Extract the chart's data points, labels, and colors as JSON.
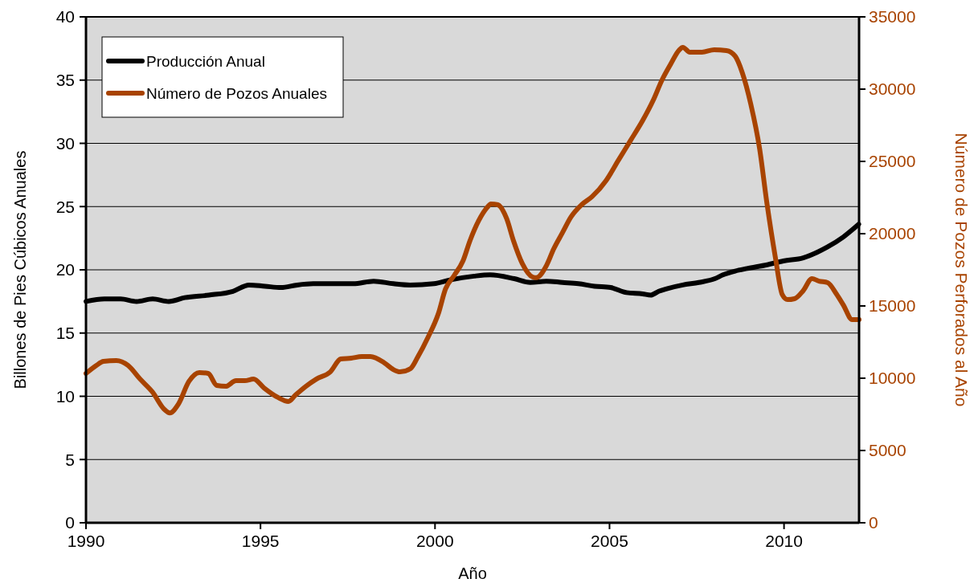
{
  "chart_data": {
    "type": "line",
    "xlabel": "Año",
    "ylabel": "Billones de Pies Cúbicos Anuales",
    "y2label": "Número de Pozos Perforados al Año",
    "xlim": [
      1990,
      2012.15
    ],
    "xticks": [
      1990,
      1995,
      2000,
      2005,
      2010
    ],
    "ylim": [
      0,
      40
    ],
    "yticks": [
      0,
      5,
      10,
      15,
      20,
      25,
      30,
      35,
      40
    ],
    "y2lim": [
      0,
      35000
    ],
    "y2ticks": [
      0,
      5000,
      10000,
      15000,
      20000,
      25000,
      30000,
      35000
    ],
    "grid": "y",
    "legend": "top left",
    "line_style": "solid",
    "marker": "none",
    "series": [
      {
        "name": "Producción Anual",
        "color": "#000000",
        "x": [
          1990,
          1990.53,
          1990.99,
          1991.45,
          1991.91,
          1992.37,
          1992.83,
          1993.52,
          1994.21,
          1994.67,
          1995.13,
          1995.59,
          1996.05,
          1996.51,
          1997.2,
          1997.66,
          1998.24,
          1998.81,
          1999.28,
          1999.97,
          2000.43,
          2001.12,
          2001.58,
          2002.27,
          2002.73,
          2003.19,
          2003.65,
          2004.11,
          2004.57,
          2005.03,
          2005.49,
          2005.95,
          2006.18,
          2006.41,
          2006.64,
          2007.1,
          2007.56,
          2008.02,
          2008.25,
          2008.6,
          2008.94,
          2009.52,
          2009.98,
          2010.55,
          2011.24,
          2011.7,
          2012.14
        ],
        "values": [
          17.5,
          17.7,
          17.7,
          17.5,
          17.7,
          17.5,
          17.8,
          18.0,
          18.3,
          18.8,
          18.7,
          18.6,
          18.8,
          18.9,
          18.9,
          18.9,
          19.1,
          18.9,
          18.8,
          18.9,
          19.2,
          19.5,
          19.6,
          19.3,
          19.0,
          19.1,
          19.0,
          18.9,
          18.7,
          18.6,
          18.2,
          18.1,
          18.0,
          18.3,
          18.5,
          18.8,
          19.0,
          19.3,
          19.6,
          19.9,
          20.1,
          20.4,
          20.7,
          20.95,
          21.8,
          22.6,
          23.6
        ]
      },
      {
        "name": "Número de Pozos Anuales",
        "color": "#a84300",
        "axis": "y2",
        "x": [
          1990,
          1990.3,
          1990.5,
          1990.87,
          1991.2,
          1991.55,
          1991.9,
          1992.25,
          1992.4,
          1992.65,
          1992.95,
          1993.25,
          1993.5,
          1993.75,
          1994,
          1994.3,
          1994.55,
          1994.8,
          1995.1,
          1995.5,
          1995.8,
          1996,
          1996.3,
          1996.6,
          1997,
          1997.3,
          1997.6,
          1997.9,
          1998.15,
          1998.55,
          1998.8,
          1999,
          1999.3,
          1999.5,
          1999.8,
          2000.1,
          2000.3,
          2000.55,
          2000.8,
          2001,
          2001.25,
          2001.5,
          2001.6,
          2001.8,
          2002.05,
          2002.25,
          2002.5,
          2002.8,
          2002.9,
          2003.2,
          2003.4,
          2003.65,
          2003.9,
          2004.2,
          2004.5,
          2004.9,
          2005.25,
          2005.6,
          2005.95,
          2006.25,
          2006.5,
          2006.75,
          2007,
          2007.1,
          2007.3,
          2007.65,
          2008,
          2008.35,
          2008.6,
          2008.8,
          2009.05,
          2009.3,
          2009.5,
          2009.75,
          2009.95,
          2010.1,
          2010.3,
          2010.55,
          2010.8,
          2011,
          2011.25,
          2011.5,
          2011.7,
          2011.95,
          2012.15
        ],
        "values": [
          10330,
          10890,
          11170,
          11220,
          10890,
          9940,
          9060,
          7830,
          7600,
          8220,
          9780,
          10390,
          10330,
          9500,
          9440,
          9830,
          9830,
          9940,
          9330,
          8670,
          8390,
          8830,
          9440,
          9940,
          10440,
          11330,
          11390,
          11500,
          11500,
          11060,
          10610,
          10440,
          10670,
          11440,
          12830,
          14500,
          16170,
          17110,
          18110,
          19500,
          20890,
          21830,
          22060,
          22000,
          21060,
          19500,
          17940,
          17000,
          16960,
          17830,
          18940,
          20060,
          21170,
          22000,
          22560,
          23670,
          25060,
          26440,
          27830,
          29220,
          30610,
          31720,
          32720,
          32890,
          32560,
          32560,
          32720,
          32670,
          32280,
          31170,
          28940,
          25890,
          22280,
          18390,
          15780,
          15440,
          15500,
          16060,
          16890,
          16720,
          16610,
          15830,
          15060,
          14060,
          14060
        ]
      }
    ]
  }
}
